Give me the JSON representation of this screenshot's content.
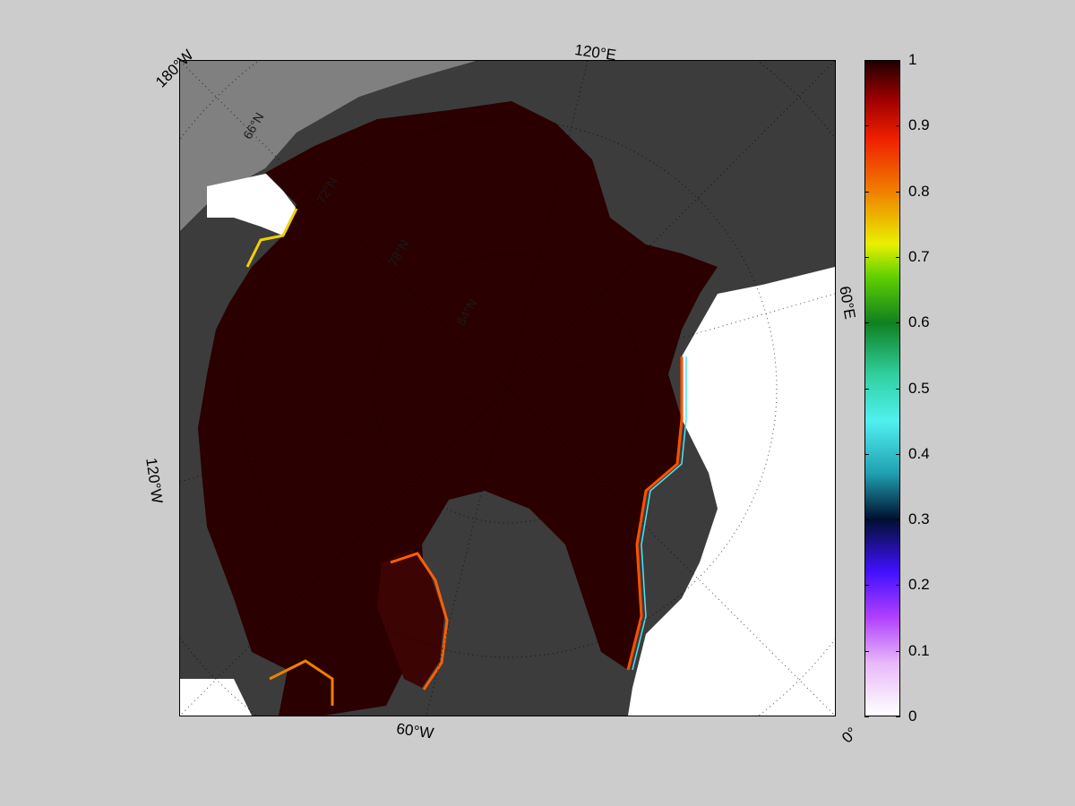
{
  "figure": {
    "background": "#cccccc",
    "land_color": "#3c3c3c",
    "outside_region_color": "#808080",
    "open_water_color": "#ffffff",
    "ice_color": "#2a0000"
  },
  "map": {
    "projection": "north polar stereographic",
    "parameter": "sea ice concentration",
    "longitude_labels": [
      {
        "text": "180°W",
        "key": "lon_180w"
      },
      {
        "text": "120°E",
        "key": "lon_120e"
      },
      {
        "text": "60°E",
        "key": "lon_60e"
      },
      {
        "text": "120°W",
        "key": "lon_120w"
      },
      {
        "text": "60°W",
        "key": "lon_60w"
      },
      {
        "text": "0°",
        "key": "lon_0"
      }
    ],
    "latitude_labels": [
      {
        "text": "66°N"
      },
      {
        "text": "72°N"
      },
      {
        "text": "78°N"
      },
      {
        "text": "84°N"
      }
    ],
    "grid": "dotted"
  },
  "colorbar": {
    "min": 0,
    "max": 1,
    "ticks": [
      "0",
      "0.1",
      "0.2",
      "0.3",
      "0.4",
      "0.5",
      "0.6",
      "0.7",
      "0.8",
      "0.9",
      "1"
    ],
    "colormap": [
      {
        "v": 0.0,
        "c": "#ffffff"
      },
      {
        "v": 0.08,
        "c": "#e8b8f8"
      },
      {
        "v": 0.15,
        "c": "#b040ff"
      },
      {
        "v": 0.22,
        "c": "#4010ff"
      },
      {
        "v": 0.3,
        "c": "#001030"
      },
      {
        "v": 0.37,
        "c": "#20a0b0"
      },
      {
        "v": 0.45,
        "c": "#50f0f0"
      },
      {
        "v": 0.52,
        "c": "#30d0a0"
      },
      {
        "v": 0.6,
        "c": "#108020"
      },
      {
        "v": 0.67,
        "c": "#60d000"
      },
      {
        "v": 0.72,
        "c": "#e8f000"
      },
      {
        "v": 0.8,
        "c": "#f08000"
      },
      {
        "v": 0.88,
        "c": "#f02000"
      },
      {
        "v": 0.94,
        "c": "#a00000"
      },
      {
        "v": 1.0,
        "c": "#200000"
      }
    ]
  }
}
